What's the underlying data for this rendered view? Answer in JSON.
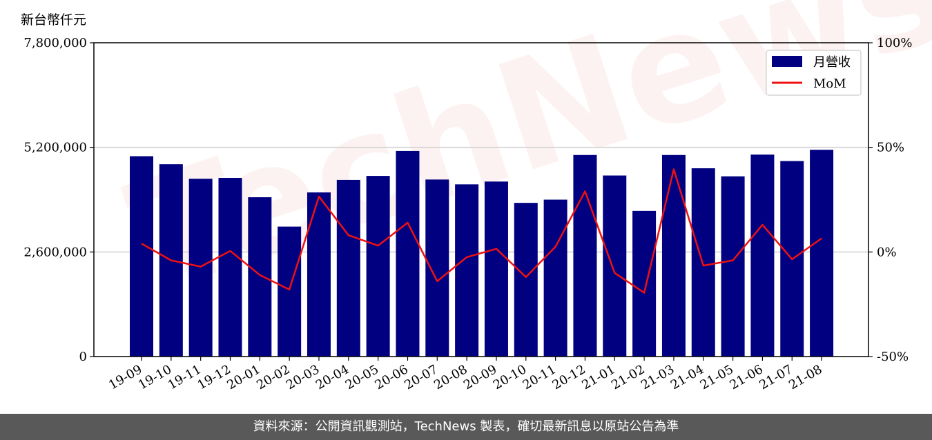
{
  "unit_label": "新台幣仟元",
  "footer_text": "資料來源：公開資訊觀測站，TechNews 製表，確切最新訊息以原站公告為準",
  "watermark_text": "TechNews",
  "colors": {
    "bar": "#000080",
    "line": "#ee1111",
    "grid": "#d0d0d0",
    "footer_bg": "#595959"
  },
  "chart_data": {
    "type": "bar",
    "categories": [
      "19-09",
      "19-10",
      "19-11",
      "19-12",
      "20-01",
      "20-02",
      "20-03",
      "20-04",
      "20-05",
      "20-06",
      "20-07",
      "20-08",
      "20-09",
      "20-10",
      "20-11",
      "20-12",
      "21-01",
      "21-02",
      "21-03",
      "21-04",
      "21-05",
      "21-06",
      "21-07",
      "21-08"
    ],
    "series": [
      {
        "name": "月營收",
        "type": "bar",
        "axis": "left",
        "values": [
          4980000,
          4780000,
          4420000,
          4440000,
          3960000,
          3230000,
          4080000,
          4390000,
          4490000,
          5110000,
          4400000,
          4280000,
          4350000,
          3820000,
          3900000,
          5010000,
          4500000,
          3620000,
          5010000,
          4680000,
          4480000,
          5020000,
          4860000,
          5140000
        ]
      },
      {
        "name": "MoM",
        "type": "line",
        "axis": "right",
        "values": [
          4,
          -4,
          -7,
          0.5,
          -11,
          -18,
          26.5,
          8,
          3,
          14,
          -14,
          -2.5,
          1.5,
          -12,
          2.5,
          29,
          -10,
          -19.5,
          39.5,
          -6.5,
          -4,
          13,
          -3.5,
          6.5
        ]
      }
    ],
    "y_left": {
      "ylim": [
        0,
        7800000
      ],
      "ticks": [
        "0",
        "2,600,000",
        "5,200,000",
        "7,800,000"
      ],
      "tick_values": [
        0,
        2600000,
        5200000,
        7800000
      ]
    },
    "y_right": {
      "ylim": [
        -50,
        100
      ],
      "ticks": [
        "-50%",
        "0%",
        "50%",
        "100%"
      ],
      "tick_values": [
        -50,
        0,
        50,
        100
      ]
    },
    "grid": true,
    "legend_position": "top-right"
  }
}
